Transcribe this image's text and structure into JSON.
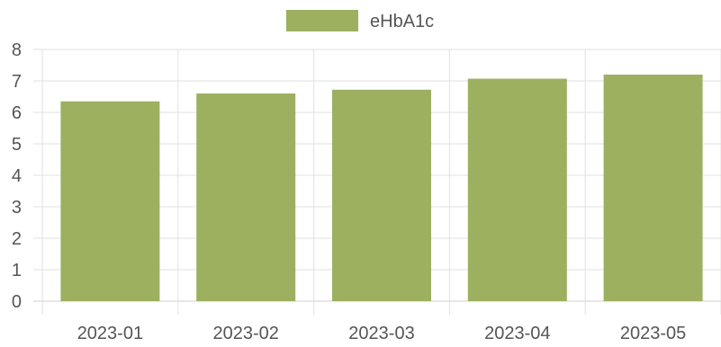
{
  "chart_data": {
    "type": "bar",
    "categories": [
      "2023-01",
      "2023-02",
      "2023-03",
      "2023-04",
      "2023-05"
    ],
    "series": [
      {
        "name": "eHbA1c",
        "values": [
          6.35,
          6.6,
          6.72,
          7.07,
          7.2
        ],
        "color": "#9cb060"
      }
    ],
    "ylim": [
      0,
      8
    ],
    "yticks": [
      0,
      1,
      2,
      3,
      4,
      5,
      6,
      7,
      8
    ],
    "grid": true,
    "legend_position": "top-center",
    "colors": {
      "grid": "#e1e1e1",
      "axis": "#cfcfcf",
      "text": "#555555"
    }
  }
}
